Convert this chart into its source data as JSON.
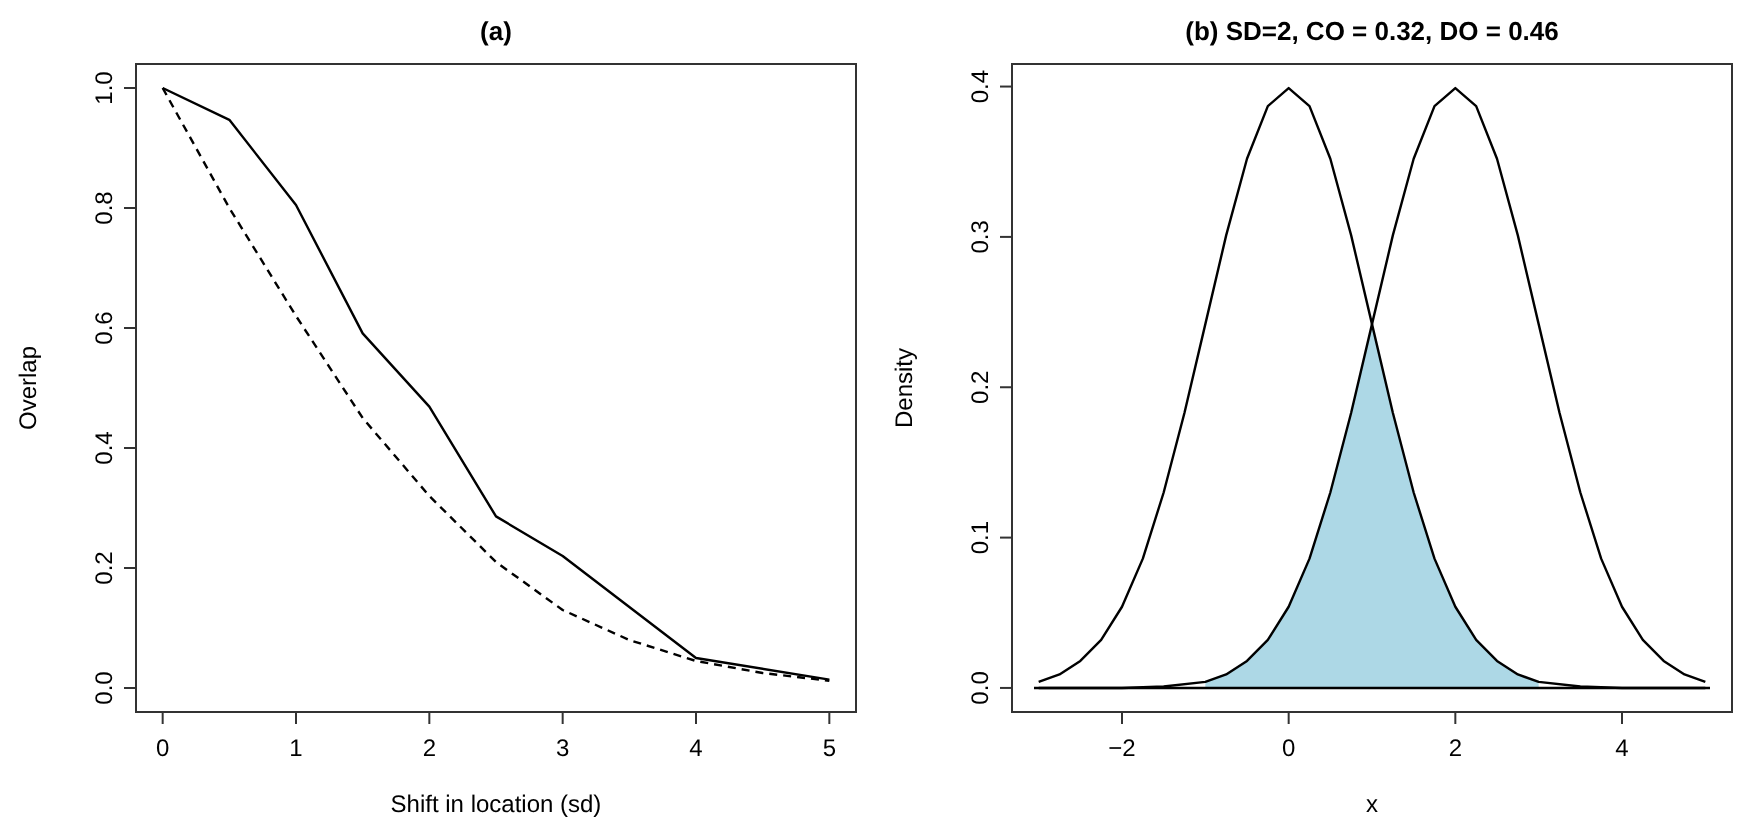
{
  "chart_data": [
    {
      "type": "line",
      "title": "(a)",
      "xlabel": "Shift in location (sd)",
      "ylabel": "Overlap",
      "xlim": [
        -0.2,
        5.2
      ],
      "ylim": [
        -0.04,
        1.04
      ],
      "xticks": [
        0,
        1,
        2,
        3,
        4,
        5
      ],
      "yticks": [
        {
          "value": 0,
          "label": "0.0"
        },
        {
          "value": 0.2,
          "label": "0.2"
        },
        {
          "value": 0.4,
          "label": "0.4"
        },
        {
          "value": 0.6,
          "label": "0.6"
        },
        {
          "value": 0.8,
          "label": "0.8"
        },
        {
          "value": 1,
          "label": "1.0"
        }
      ],
      "grid": false,
      "series": [
        {
          "color": "#000000",
          "line_style": "solid",
          "x": [
            0,
            0.5,
            1,
            1.5,
            2,
            2.5,
            3,
            4,
            5
          ],
          "values": [
            1.0,
            0.947,
            0.805,
            0.591,
            0.469,
            0.286,
            0.22,
            0.05,
            0.014
          ]
        },
        {
          "color": "#000000",
          "line_style": "dashed",
          "x": [
            0,
            0.5,
            1,
            1.5,
            2,
            2.5,
            3,
            3.5,
            4,
            4.5,
            5
          ],
          "values": [
            1.0,
            0.8,
            0.62,
            0.45,
            0.32,
            0.21,
            0.13,
            0.08,
            0.045,
            0.025,
            0.012
          ]
        }
      ]
    },
    {
      "type": "line",
      "title": "(b) SD=2, CO = 0.32, DO = 0.46",
      "xlabel": "x",
      "ylabel": "Density",
      "xlim": [
        -3.32,
        5.32
      ],
      "ylim": [
        -0.016,
        0.415
      ],
      "xticks": [
        {
          "value": -2,
          "label": "−2"
        },
        0,
        2,
        4
      ],
      "yticks": [
        {
          "value": 0,
          "label": "0.0"
        },
        {
          "value": 0.1,
          "label": "0.1"
        },
        {
          "value": 0.2,
          "label": "0.2"
        },
        {
          "value": 0.3,
          "label": "0.3"
        },
        {
          "value": 0.4,
          "label": "0.4"
        }
      ],
      "grid": false,
      "ref_lines": [
        {
          "axis": "y",
          "value": 0,
          "color": "#000000"
        }
      ],
      "series": [
        {
          "type": "area",
          "color": "#add8e6",
          "x": [
            -1,
            -0.75,
            -0.5,
            -0.25,
            0,
            0.25,
            0.5,
            0.75,
            1,
            1.25,
            1.5,
            1.75,
            2,
            2.25,
            2.5,
            2.75,
            3
          ],
          "values": [
            0.004,
            0.009,
            0.018,
            0.032,
            0.054,
            0.086,
            0.13,
            0.183,
            0.242,
            0.183,
            0.13,
            0.086,
            0.054,
            0.032,
            0.018,
            0.009,
            0.004
          ]
        },
        {
          "color": "#000000",
          "line_style": "solid",
          "x": [
            -3,
            -2.75,
            -2.5,
            -2.25,
            -2,
            -1.75,
            -1.5,
            -1.25,
            -1,
            -0.75,
            -0.5,
            -0.25,
            0,
            0.25,
            0.5,
            0.75,
            1,
            1.25,
            1.5,
            1.75,
            2,
            2.25,
            2.5,
            2.75,
            3,
            3.5,
            4,
            5
          ],
          "values": [
            0.004,
            0.009,
            0.018,
            0.032,
            0.054,
            0.086,
            0.13,
            0.183,
            0.242,
            0.301,
            0.352,
            0.387,
            0.399,
            0.387,
            0.352,
            0.301,
            0.242,
            0.183,
            0.13,
            0.086,
            0.054,
            0.032,
            0.018,
            0.009,
            0.004,
            0.001,
            0,
            0
          ]
        },
        {
          "color": "#000000",
          "line_style": "solid",
          "x": [
            -3,
            -2,
            -1.5,
            -1,
            -0.75,
            -0.5,
            -0.25,
            0,
            0.25,
            0.5,
            0.75,
            1,
            1.25,
            1.5,
            1.75,
            2,
            2.25,
            2.5,
            2.75,
            3,
            3.25,
            3.5,
            3.75,
            4,
            4.25,
            4.5,
            4.75,
            5
          ],
          "values": [
            0,
            0,
            0.001,
            0.004,
            0.009,
            0.018,
            0.032,
            0.054,
            0.086,
            0.13,
            0.183,
            0.242,
            0.301,
            0.352,
            0.387,
            0.399,
            0.387,
            0.352,
            0.301,
            0.242,
            0.183,
            0.13,
            0.086,
            0.054,
            0.032,
            0.018,
            0.009,
            0.004
          ]
        }
      ]
    }
  ]
}
